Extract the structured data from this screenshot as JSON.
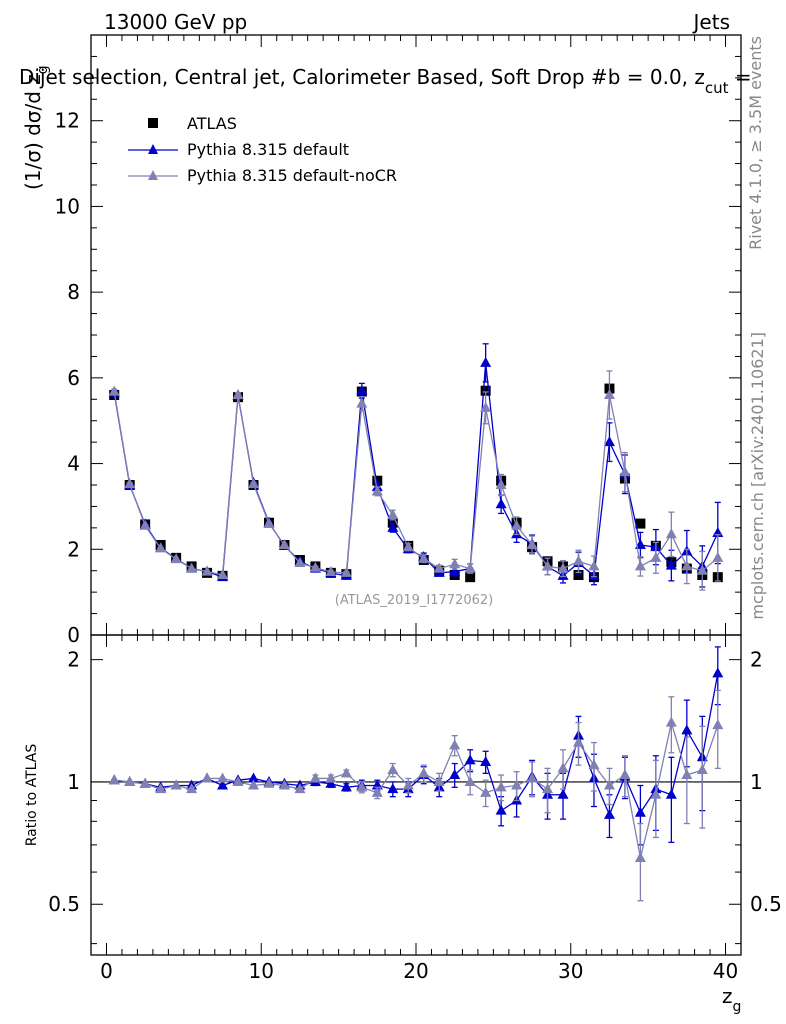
{
  "header": {
    "energy": "13000 GeV pp",
    "process": "Jets",
    "title": "Dijet selection, Central jet, Calorimeter Based, Soft Drop #b = 0.0, z",
    "title_sub": "cut",
    "title_tail": " ="
  },
  "side_labels": {
    "rivet": "Rivet 4.1.0, ≥ 3.5M events",
    "mcplots": "mcplots.cern.ch [arXiv:2401.10621]"
  },
  "analysis_id": "(ATLAS_2019_I1772062)",
  "colors": {
    "atlas": "#000000",
    "default": "#0000cc",
    "nocr": "#8080b3",
    "ref_line": "#000000"
  },
  "legend": {
    "atlas": "ATLAS",
    "default": "Pythia 8.315 default",
    "nocr": "Pythia 8.315 default-noCR"
  },
  "chart_data": [
    {
      "type": "scatter",
      "panel": "main",
      "title": "Dijet selection, Central jet, Calorimeter Based, Soft Drop #b = 0.0, z_cut =",
      "xlabel": "z",
      "xlabel_sub": "g",
      "ylabel": "(1/σ) dσ/d z",
      "ylabel_sub": "g",
      "xlim": [
        -1,
        41
      ],
      "ylim": [
        0,
        14
      ],
      "yticks": [
        0,
        2,
        4,
        6,
        8,
        10,
        12
      ],
      "ytick_labels": [
        "0",
        "2",
        "4",
        "6",
        "8",
        "10",
        "12"
      ],
      "x": [
        0.5,
        1.5,
        2.5,
        3.5,
        4.5,
        5.5,
        6.5,
        7.5,
        8.5,
        9.5,
        10.5,
        11.5,
        12.5,
        13.5,
        14.5,
        15.5,
        16.5,
        17.5,
        18.5,
        19.5,
        20.5,
        21.5,
        22.5,
        23.5,
        24.5,
        25.5,
        26.5,
        27.5,
        28.5,
        29.5,
        30.5,
        31.5,
        32.5,
        33.5,
        34.5,
        35.5,
        36.5,
        37.5,
        38.5,
        39.5
      ],
      "series": [
        {
          "name": "ATLAS",
          "marker": "square",
          "values": [
            5.6,
            3.5,
            2.58,
            2.1,
            1.8,
            1.6,
            1.45,
            1.38,
            5.55,
            3.5,
            2.62,
            2.1,
            1.75,
            1.6,
            1.45,
            1.42,
            5.68,
            3.6,
            2.62,
            2.08,
            1.75,
            1.5,
            1.4,
            1.35,
            5.7,
            3.6,
            2.62,
            2.05,
            1.72,
            1.6,
            1.4,
            1.35,
            5.75,
            3.65,
            2.6,
            2.08,
            1.7,
            1.55,
            1.4,
            1.35
          ]
        },
        {
          "name": "Pythia 8.315 default",
          "marker": "triangle",
          "values": [
            5.65,
            3.5,
            2.58,
            2.03,
            1.78,
            1.55,
            1.48,
            1.35,
            5.58,
            3.55,
            2.62,
            2.08,
            1.72,
            1.55,
            1.45,
            1.38,
            5.7,
            3.45,
            2.5,
            2.0,
            1.82,
            1.45,
            1.48,
            1.55,
            6.35,
            3.05,
            2.35,
            2.12,
            1.6,
            1.38,
            1.68,
            1.38,
            4.5,
            3.75,
            2.1,
            2.05,
            1.62,
            1.95,
            1.6,
            2.38
          ]
        },
        {
          "name": "Pythia 8.315 default-noCR",
          "marker": "triangle",
          "values": [
            5.68,
            3.52,
            2.55,
            2.02,
            1.77,
            1.55,
            1.48,
            1.4,
            5.6,
            3.52,
            2.6,
            2.1,
            1.68,
            1.57,
            1.47,
            1.45,
            5.4,
            3.35,
            2.8,
            2.05,
            1.78,
            1.55,
            1.65,
            1.55,
            5.3,
            3.5,
            2.55,
            2.1,
            1.6,
            1.55,
            1.72,
            1.6,
            5.6,
            3.8,
            1.6,
            1.8,
            2.35,
            1.6,
            1.5,
            1.8
          ]
        }
      ]
    },
    {
      "type": "scatter",
      "panel": "ratio",
      "xlabel": "z",
      "xlabel_sub": "g",
      "ylabel": "Ratio to ATLAS",
      "xlim": [
        -1,
        41
      ],
      "ylim": [
        0.375,
        2.3
      ],
      "xticks": [
        0,
        10,
        20,
        30,
        40
      ],
      "xtick_labels": [
        "0",
        "10",
        "20",
        "30",
        "40"
      ],
      "yticks": [
        0.5,
        1,
        2
      ],
      "ytick_labels": [
        "0.5",
        "1",
        "2"
      ],
      "x": [
        0.5,
        1.5,
        2.5,
        3.5,
        4.5,
        5.5,
        6.5,
        7.5,
        8.5,
        9.5,
        10.5,
        11.5,
        12.5,
        13.5,
        14.5,
        15.5,
        16.5,
        17.5,
        18.5,
        19.5,
        20.5,
        21.5,
        22.5,
        23.5,
        24.5,
        25.5,
        26.5,
        27.5,
        28.5,
        29.5,
        30.5,
        31.5,
        32.5,
        33.5,
        34.5,
        35.5,
        36.5,
        37.5,
        38.5,
        39.5
      ],
      "series": [
        {
          "name": "Pythia 8.315 default",
          "values": [
            1.01,
            1.0,
            0.99,
            0.97,
            0.98,
            0.98,
            1.02,
            0.98,
            1.01,
            1.02,
            1.0,
            0.99,
            0.98,
            1.0,
            0.99,
            0.97,
            0.98,
            0.98,
            0.96,
            0.96,
            1.04,
            0.97,
            1.04,
            1.13,
            1.12,
            0.85,
            0.9,
            1.03,
            0.93,
            0.93,
            1.3,
            1.02,
            0.83,
            1.03,
            0.84,
            0.96,
            0.93,
            1.34,
            1.15,
            1.85
          ],
          "errors": [
            0.01,
            0.01,
            0.01,
            0.01,
            0.01,
            0.01,
            0.01,
            0.01,
            0.01,
            0.01,
            0.01,
            0.01,
            0.01,
            0.02,
            0.02,
            0.02,
            0.03,
            0.03,
            0.04,
            0.04,
            0.05,
            0.05,
            0.07,
            0.07,
            0.07,
            0.07,
            0.08,
            0.1,
            0.12,
            0.12,
            0.15,
            0.15,
            0.1,
            0.12,
            0.14,
            0.2,
            0.22,
            0.25,
            0.3,
            0.3
          ]
        },
        {
          "name": "Pythia 8.315 default-noCR",
          "values": [
            1.01,
            1.0,
            0.99,
            0.96,
            0.98,
            0.96,
            1.02,
            1.02,
            1.0,
            0.98,
            0.99,
            0.98,
            0.96,
            1.02,
            1.02,
            1.05,
            0.97,
            0.94,
            1.07,
            0.98,
            1.05,
            1.0,
            1.23,
            1.0,
            0.94,
            0.97,
            0.98,
            1.02,
            0.96,
            1.08,
            1.25,
            1.1,
            0.98,
            1.04,
            0.65,
            0.93,
            1.4,
            1.04,
            1.07,
            1.38
          ],
          "errors": [
            0.01,
            0.01,
            0.01,
            0.01,
            0.01,
            0.01,
            0.01,
            0.01,
            0.01,
            0.01,
            0.01,
            0.01,
            0.01,
            0.02,
            0.02,
            0.02,
            0.03,
            0.03,
            0.04,
            0.04,
            0.05,
            0.05,
            0.07,
            0.07,
            0.07,
            0.07,
            0.08,
            0.1,
            0.12,
            0.12,
            0.15,
            0.15,
            0.1,
            0.12,
            0.14,
            0.2,
            0.22,
            0.25,
            0.3,
            0.3
          ]
        }
      ]
    }
  ]
}
